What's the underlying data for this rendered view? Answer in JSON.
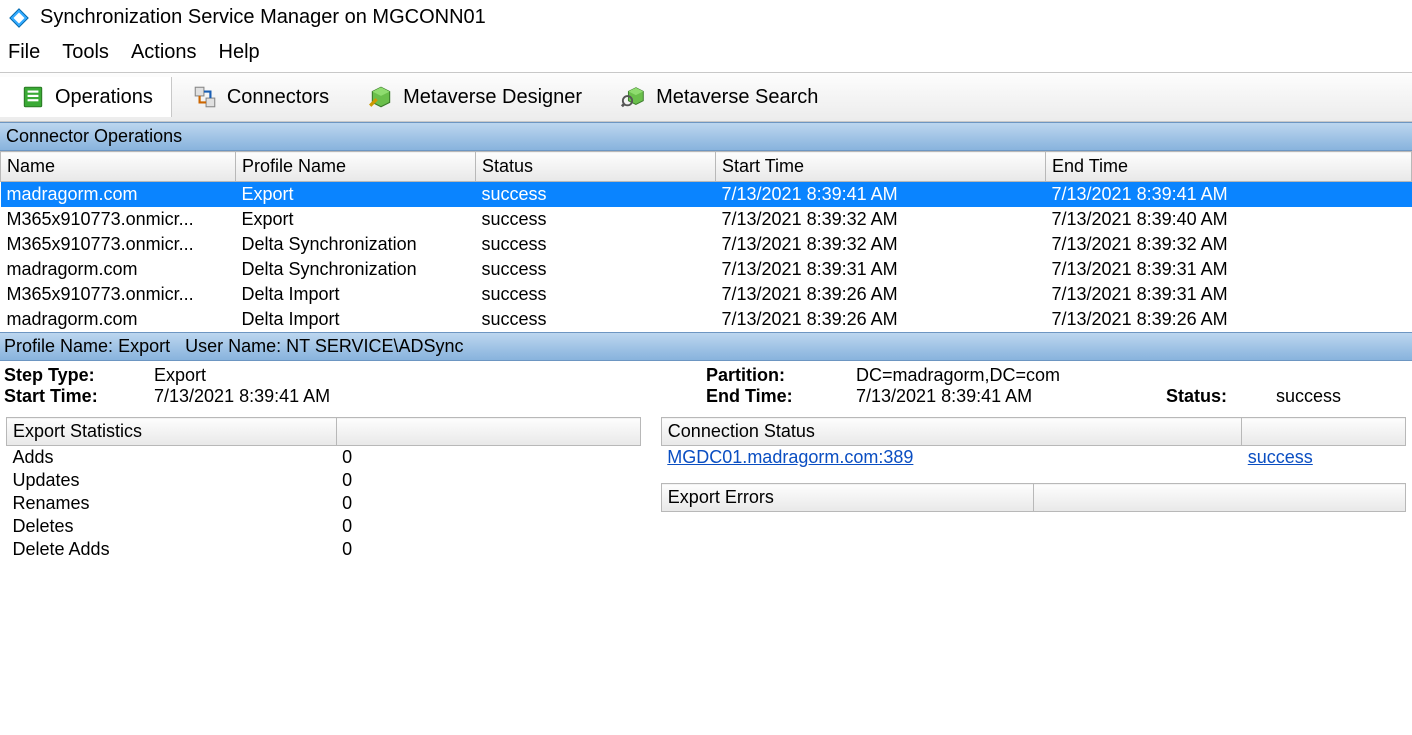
{
  "window": {
    "title": "Synchronization Service Manager on MGCONN01"
  },
  "menubar": {
    "items": [
      "File",
      "Tools",
      "Actions",
      "Help"
    ]
  },
  "toolbar": {
    "tabs": [
      {
        "label": "Operations",
        "icon": "operations-icon",
        "active": true
      },
      {
        "label": "Connectors",
        "icon": "connectors-icon",
        "active": false
      },
      {
        "label": "Metaverse Designer",
        "icon": "mv-designer-icon",
        "active": false
      },
      {
        "label": "Metaverse Search",
        "icon": "mv-search-icon",
        "active": false
      }
    ]
  },
  "operations_panel": {
    "header": "Connector Operations",
    "columns": [
      "Name",
      "Profile Name",
      "Status",
      "Start Time",
      "End Time"
    ],
    "rows": [
      {
        "name": "madragorm.com",
        "profile": "Export",
        "status": "success",
        "start": "7/13/2021 8:39:41 AM",
        "end": "7/13/2021 8:39:41 AM",
        "selected": true
      },
      {
        "name": "M365x910773.onmicr...",
        "profile": "Export",
        "status": "success",
        "start": "7/13/2021 8:39:32 AM",
        "end": "7/13/2021 8:39:40 AM",
        "selected": false
      },
      {
        "name": "M365x910773.onmicr...",
        "profile": "Delta Synchronization",
        "status": "success",
        "start": "7/13/2021 8:39:32 AM",
        "end": "7/13/2021 8:39:32 AM",
        "selected": false
      },
      {
        "name": "madragorm.com",
        "profile": "Delta Synchronization",
        "status": "success",
        "start": "7/13/2021 8:39:31 AM",
        "end": "7/13/2021 8:39:31 AM",
        "selected": false
      },
      {
        "name": "M365x910773.onmicr...",
        "profile": "Delta Import",
        "status": "success",
        "start": "7/13/2021 8:39:26 AM",
        "end": "7/13/2021 8:39:31 AM",
        "selected": false
      },
      {
        "name": "madragorm.com",
        "profile": "Delta Import",
        "status": "success",
        "start": "7/13/2021 8:39:26 AM",
        "end": "7/13/2021 8:39:26 AM",
        "selected": false
      }
    ]
  },
  "details": {
    "bar_profile_label": "Profile Name:",
    "bar_profile_value": "Export",
    "bar_user_label": "User Name:",
    "bar_user_value": "NT SERVICE\\ADSync",
    "step_type_label": "Step Type:",
    "step_type_value": "Export",
    "start_time_label": "Start Time:",
    "start_time_value": "7/13/2021 8:39:41 AM",
    "partition_label": "Partition:",
    "partition_value": "DC=madragorm,DC=com",
    "end_time_label": "End Time:",
    "end_time_value": "7/13/2021 8:39:41 AM",
    "status_label": "Status:",
    "status_value": "success"
  },
  "export_stats": {
    "header": "Export Statistics",
    "rows": [
      {
        "label": "Adds",
        "value": "0"
      },
      {
        "label": "Updates",
        "value": "0"
      },
      {
        "label": "Renames",
        "value": "0"
      },
      {
        "label": "Deletes",
        "value": "0"
      },
      {
        "label": "Delete Adds",
        "value": "0"
      }
    ]
  },
  "connection_status": {
    "header": "Connection Status",
    "server": "MGDC01.madragorm.com:389",
    "status": "success"
  },
  "export_errors": {
    "header": "Export Errors"
  },
  "colors": {
    "selected_row_bg": "#0a84ff",
    "selected_row_fg": "#ffffff",
    "section_header_top": "#bcd6ef",
    "section_header_bottom": "#88b3dd",
    "grid_border": "#b8b8b8",
    "link": "#0a4ec2"
  }
}
